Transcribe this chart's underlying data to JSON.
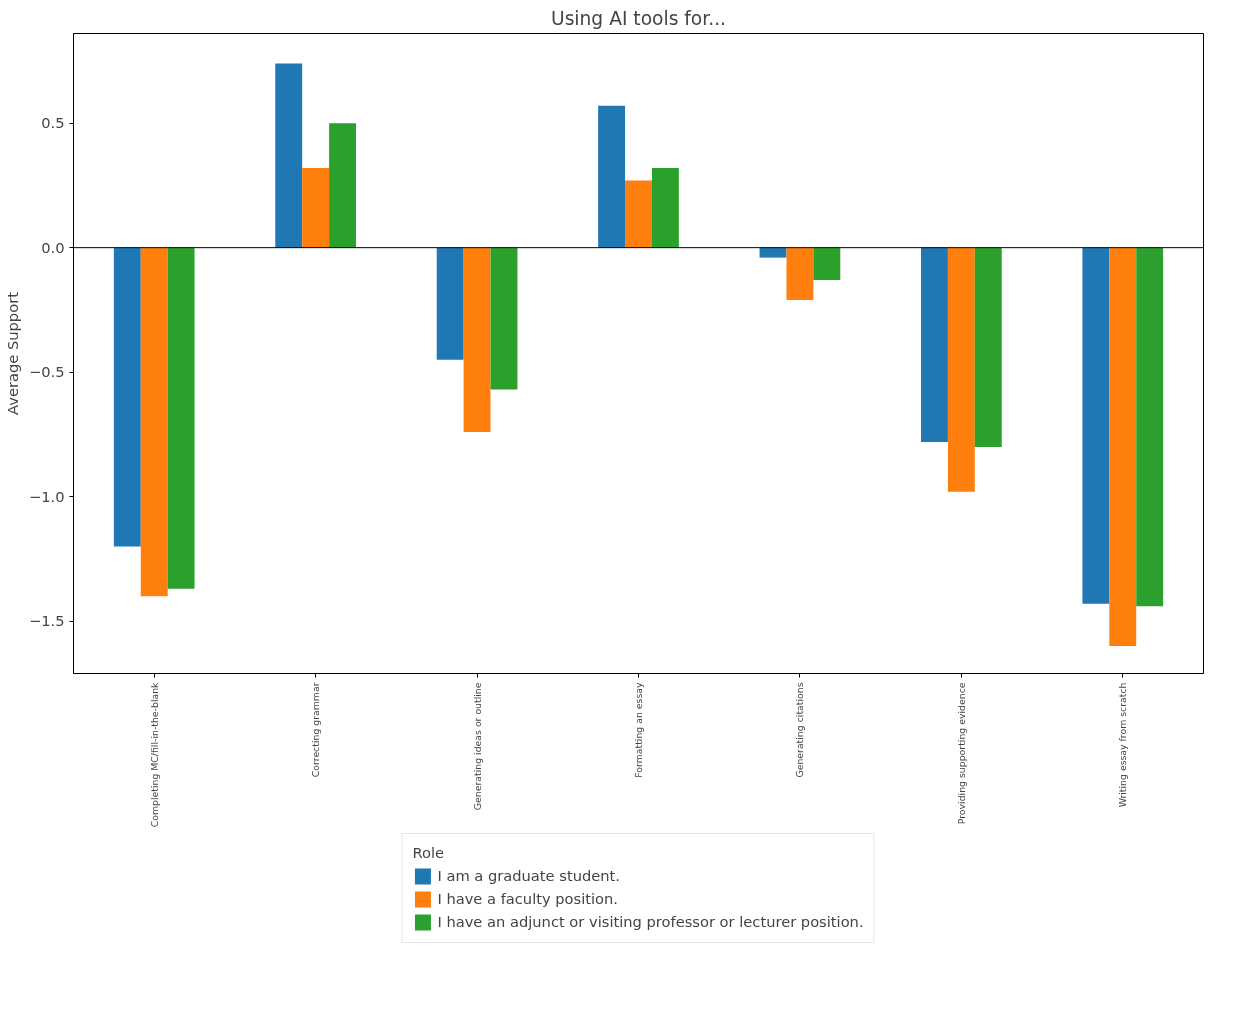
{
  "chart_data": {
    "type": "bar",
    "title": "Using AI tools for...",
    "ylabel": "Average Support",
    "legend_title": "Role",
    "categories": [
      "Completing MC/fill-in-the-blank",
      "Correcting grammar",
      "Generating ideas or outline",
      "Formatting an essay",
      "Generating citations",
      "Providing supporting evidence",
      "Writing essay from scratch"
    ],
    "series": [
      {
        "name": "I am a graduate student.",
        "color": "#1f77b4",
        "values": [
          -1.2,
          0.74,
          -0.45,
          0.57,
          -0.04,
          -0.78,
          -1.43
        ]
      },
      {
        "name": "I have a faculty position.",
        "color": "#ff7f0e",
        "values": [
          -1.4,
          0.32,
          -0.74,
          0.27,
          -0.21,
          -0.98,
          -1.6
        ]
      },
      {
        "name": "I have an adjunct or visiting professor or lecturer position.",
        "color": "#2ca02c",
        "values": [
          -1.37,
          0.5,
          -0.57,
          0.32,
          -0.13,
          -0.8,
          -1.44
        ]
      }
    ],
    "ylim": [
      -1.71,
      0.86
    ],
    "yticks": [
      {
        "value": -1.5,
        "label": "−1.5"
      },
      {
        "value": -1.0,
        "label": "−1.0"
      },
      {
        "value": -0.5,
        "label": "−0.5"
      },
      {
        "value": 0.0,
        "label": "0.0"
      },
      {
        "value": 0.5,
        "label": "0.5"
      }
    ],
    "ref_lines": [
      {
        "axis": "y",
        "value": 0,
        "color": "#000000"
      }
    ],
    "grid": false,
    "legend": "bottom"
  }
}
